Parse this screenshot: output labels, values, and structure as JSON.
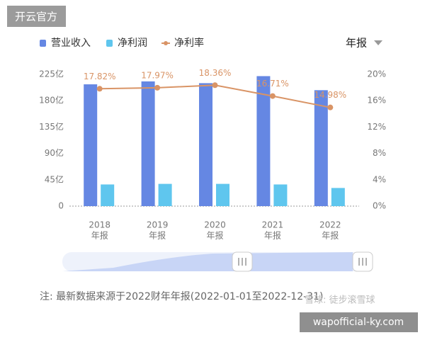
{
  "chart_data": {
    "type": "bar-line",
    "categories": [
      "2018",
      "2019",
      "2020",
      "2021",
      "2022"
    ],
    "category_sublabels": [
      "年报",
      "年报",
      "年报",
      "年报",
      "年报"
    ],
    "series": [
      {
        "name": "营业收入",
        "color": "#6587e3",
        "type": "bar",
        "values": [
          208,
          213,
          210,
          222,
          198
        ]
      },
      {
        "name": "净利润",
        "color": "#5fc6ee",
        "type": "bar",
        "values": [
          37,
          38,
          38,
          37,
          31
        ]
      },
      {
        "name": "净利率",
        "color": "#d99466",
        "type": "line",
        "axis": "y2",
        "values": [
          17.82,
          17.97,
          18.36,
          16.71,
          14.98
        ],
        "value_labels": [
          "17.82%",
          "17.97%",
          "18.36%",
          "16.71%",
          "14.98%"
        ]
      }
    ],
    "ylim": [
      0,
      225
    ],
    "yticks": [
      0,
      {
        "value": 45,
        "label": "45亿"
      },
      {
        "value": 90,
        "label": "90亿"
      },
      {
        "value": 135,
        "label": "135亿"
      },
      {
        "value": 180,
        "label": "180亿"
      },
      {
        "value": 225,
        "label": "225亿"
      }
    ],
    "y2lim": [
      0,
      20
    ],
    "y2ticks": [
      {
        "value": 0,
        "label": "0%"
      },
      {
        "value": 4,
        "label": "4%"
      },
      {
        "value": 8,
        "label": "8%"
      },
      {
        "value": 12,
        "label": "12%"
      },
      {
        "value": 16,
        "label": "16%"
      },
      {
        "value": 20,
        "label": "20%"
      }
    ],
    "grid": false,
    "legend": "top-left"
  },
  "period_selector": "年报",
  "note": "注: 最新数据来源于2022财年年报(2022-01-01至2022-12-31)",
  "watermark": "开云官方",
  "xueqiu_watermark": "雪球: 徒步滚雪球",
  "site_label": "wapofficial-ky.com"
}
